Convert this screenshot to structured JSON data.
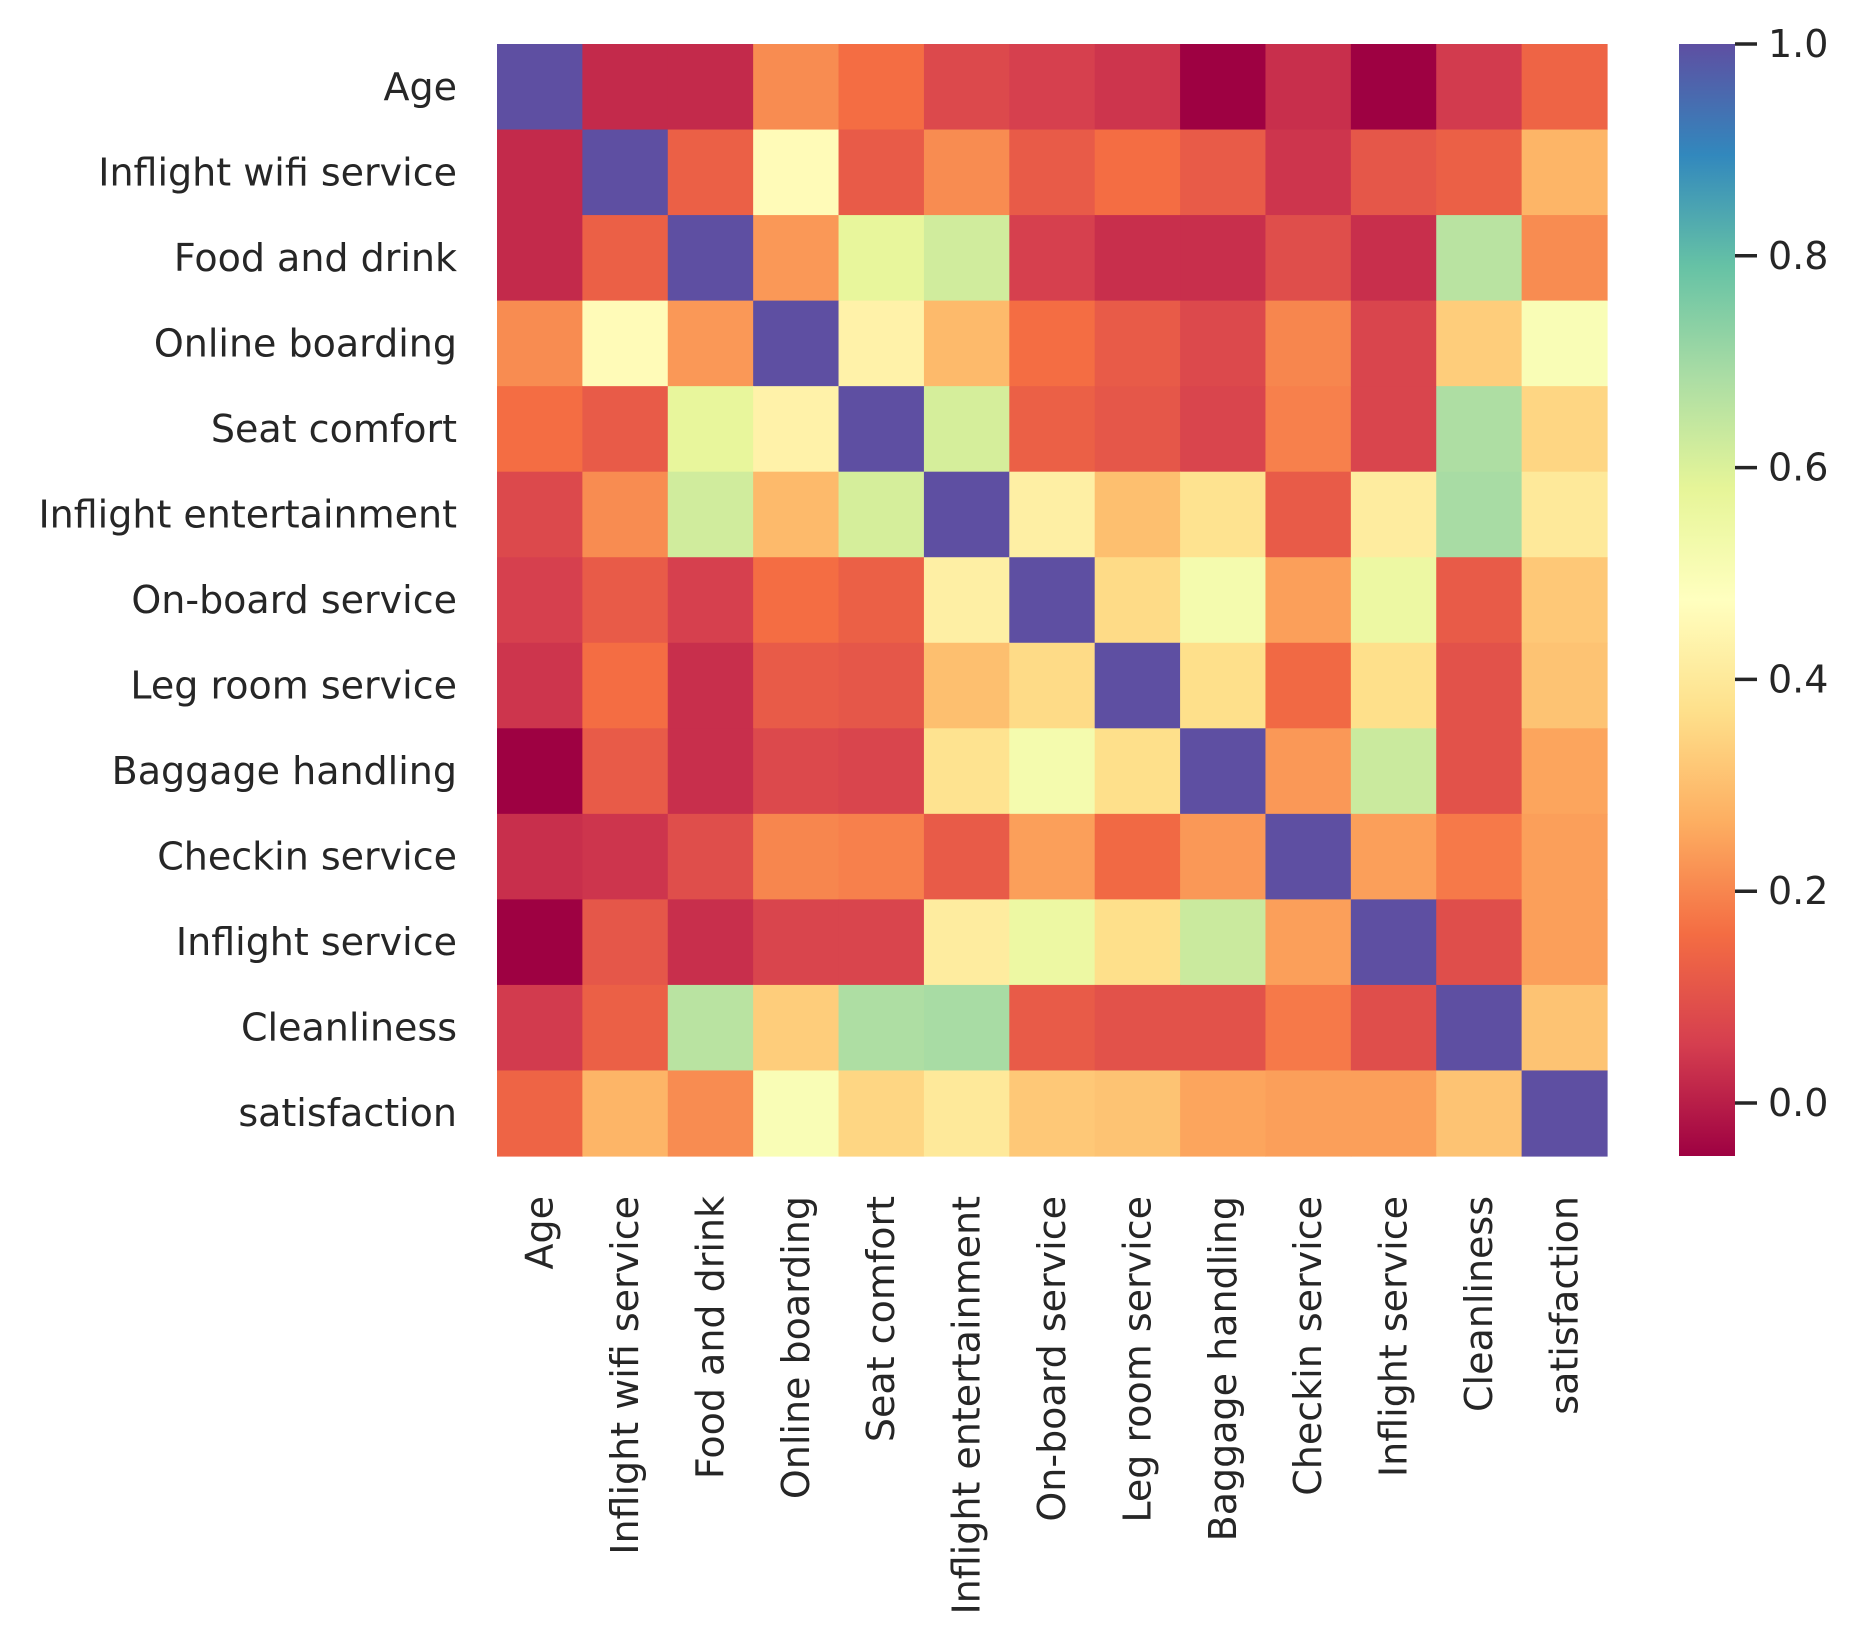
{
  "chart_data": {
    "type": "heatmap",
    "title": "",
    "xlabel": "",
    "ylabel": "",
    "x_categories": [
      "Age",
      "Inflight wifi service",
      "Food and drink",
      "Online boarding",
      "Seat comfort",
      "Inflight entertainment",
      "On-board service",
      "Leg room service",
      "Baggage handling",
      "Checkin service",
      "Inflight service",
      "Cleanliness",
      "satisfaction"
    ],
    "y_categories": [
      "Age",
      "Inflight wifi service",
      "Food and drink",
      "Online boarding",
      "Seat comfort",
      "Inflight entertainment",
      "On-board service",
      "Leg room service",
      "Baggage handling",
      "Checkin service",
      "Inflight service",
      "Cleanliness",
      "satisfaction"
    ],
    "values": [
      [
        1.0,
        0.02,
        0.02,
        0.21,
        0.16,
        0.08,
        0.06,
        0.04,
        -0.05,
        0.03,
        -0.05,
        0.05,
        0.14
      ],
      [
        0.02,
        1.0,
        0.13,
        0.46,
        0.12,
        0.21,
        0.12,
        0.16,
        0.12,
        0.04,
        0.11,
        0.13,
        0.28
      ],
      [
        0.02,
        0.13,
        1.0,
        0.23,
        0.57,
        0.62,
        0.06,
        0.03,
        0.03,
        0.09,
        0.03,
        0.66,
        0.21
      ],
      [
        0.21,
        0.46,
        0.23,
        1.0,
        0.43,
        0.29,
        0.16,
        0.12,
        0.08,
        0.2,
        0.07,
        0.33,
        0.5
      ],
      [
        0.16,
        0.12,
        0.57,
        0.43,
        1.0,
        0.61,
        0.13,
        0.11,
        0.07,
        0.19,
        0.07,
        0.68,
        0.35
      ],
      [
        0.08,
        0.21,
        0.62,
        0.29,
        0.61,
        1.0,
        0.42,
        0.3,
        0.38,
        0.12,
        0.41,
        0.69,
        0.4
      ],
      [
        0.06,
        0.12,
        0.06,
        0.16,
        0.13,
        0.42,
        1.0,
        0.36,
        0.52,
        0.24,
        0.55,
        0.12,
        0.32
      ],
      [
        0.04,
        0.16,
        0.03,
        0.12,
        0.11,
        0.3,
        0.36,
        1.0,
        0.37,
        0.15,
        0.37,
        0.1,
        0.31
      ],
      [
        -0.05,
        0.12,
        0.03,
        0.08,
        0.07,
        0.38,
        0.52,
        0.37,
        1.0,
        0.23,
        0.63,
        0.1,
        0.25
      ],
      [
        0.03,
        0.04,
        0.09,
        0.2,
        0.19,
        0.12,
        0.24,
        0.15,
        0.23,
        1.0,
        0.24,
        0.18,
        0.24
      ],
      [
        -0.05,
        0.11,
        0.03,
        0.07,
        0.07,
        0.41,
        0.55,
        0.37,
        0.63,
        0.24,
        1.0,
        0.09,
        0.24
      ],
      [
        0.05,
        0.13,
        0.66,
        0.33,
        0.68,
        0.69,
        0.12,
        0.1,
        0.1,
        0.18,
        0.09,
        1.0,
        0.31
      ],
      [
        0.14,
        0.28,
        0.21,
        0.5,
        0.35,
        0.4,
        0.32,
        0.31,
        0.25,
        0.24,
        0.24,
        0.31,
        1.0
      ]
    ],
    "colormap": "Spectral",
    "vmin": -0.05,
    "vmax": 1.0,
    "colorbar": {
      "ticks": [
        0.0,
        0.2,
        0.4,
        0.6,
        0.8,
        1.0
      ],
      "tick_labels": [
        "0.0",
        "0.2",
        "0.4",
        "0.6",
        "0.8",
        "1.0"
      ]
    },
    "colormap_stops": [
      "#9e0142",
      "#d53e4f",
      "#f46d43",
      "#fdae61",
      "#fee08b",
      "#ffffbf",
      "#e6f598",
      "#abdda4",
      "#66c2a5",
      "#3288bd",
      "#5e4fa2"
    ],
    "text_color": "#262626"
  }
}
